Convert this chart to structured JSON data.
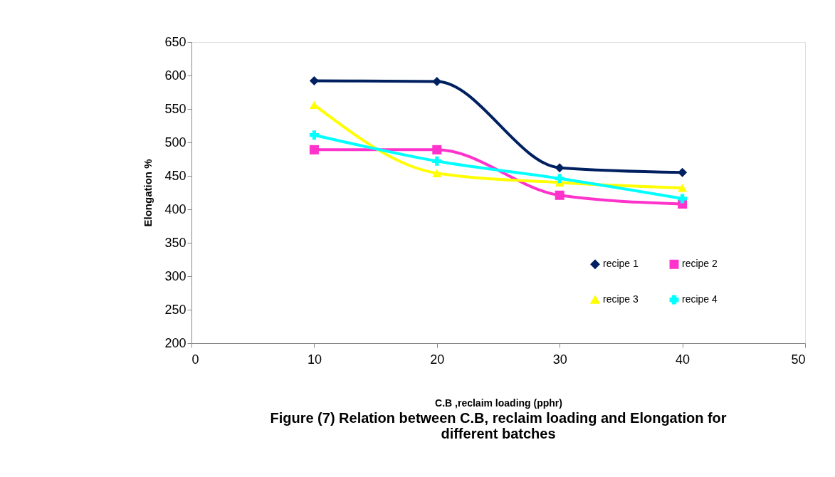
{
  "chart_data": {
    "type": "line",
    "title": "Figure (7) Relation between C.B, reclaim loading and Elongation for different batches",
    "xlabel": "C.B ,reclaim loading (pphr)",
    "ylabel": "Elongation %",
    "x": [
      10,
      20,
      30,
      40
    ],
    "series": [
      {
        "name": "recipe 1",
        "color": "#002060",
        "marker": "diamond",
        "values": [
          592,
          591,
          462,
          455
        ]
      },
      {
        "name": "recipe 2",
        "color": "#ff33cc",
        "marker": "square",
        "values": [
          489,
          489,
          421,
          408
        ]
      },
      {
        "name": "recipe 3",
        "color": "#ffff00",
        "marker": "triangle",
        "values": [
          556,
          454,
          440,
          432
        ]
      },
      {
        "name": "recipe 4",
        "color": "#00ffff",
        "marker": "cross",
        "values": [
          511,
          472,
          446,
          416
        ]
      }
    ],
    "xlim": [
      0,
      50
    ],
    "xticks": [
      0,
      10,
      20,
      30,
      40,
      50
    ],
    "ylim": [
      200,
      650
    ],
    "yticks": [
      200,
      250,
      300,
      350,
      400,
      450,
      500,
      550,
      600,
      650
    ],
    "grid": false,
    "legend": "bottom right"
  }
}
